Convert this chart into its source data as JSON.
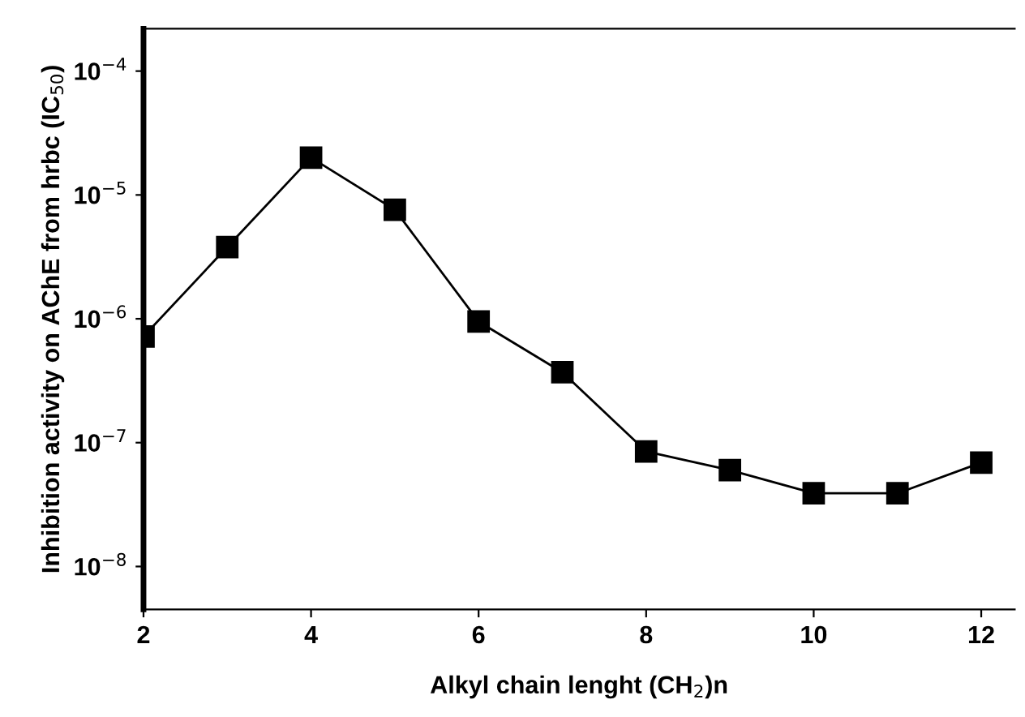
{
  "chart_data": {
    "type": "line",
    "xlabel": "Alkyl chain lenght (CH$_{2}$)n",
    "ylabel": "Inhibition activity on AChE from hrbc (IC$_{50}$)",
    "x": [
      2,
      3,
      4,
      5,
      6,
      7,
      8,
      9,
      10,
      11,
      12
    ],
    "series": [
      {
        "color": "#000000",
        "values": [
          7.2e-07,
          3.8e-06,
          2e-05,
          7.6e-06,
          9.5e-07,
          3.7e-07,
          8.5e-08,
          6e-08,
          3.9e-08,
          3.9e-08,
          6.9e-08
        ]
      }
    ],
    "log": "y",
    "marker": "square",
    "line_style": "solid",
    "grid": false,
    "legend": false,
    "xlim": [
      2,
      12.4
    ],
    "xticks": [
      2,
      4,
      6,
      8,
      10,
      12
    ],
    "ylim": [
      4.5e-09,
      0.00022
    ],
    "yticks": [
      {
        "value": 1e-08,
        "label": "10$^{−8}$"
      },
      {
        "value": 1e-07,
        "label": "10$^{−7}$"
      },
      {
        "value": 1e-06,
        "label": "10$^{−6}$"
      },
      {
        "value": 1e-05,
        "label": "10$^{−5}$"
      },
      {
        "value": 0.0001,
        "label": "10$^{−4}$"
      }
    ]
  }
}
